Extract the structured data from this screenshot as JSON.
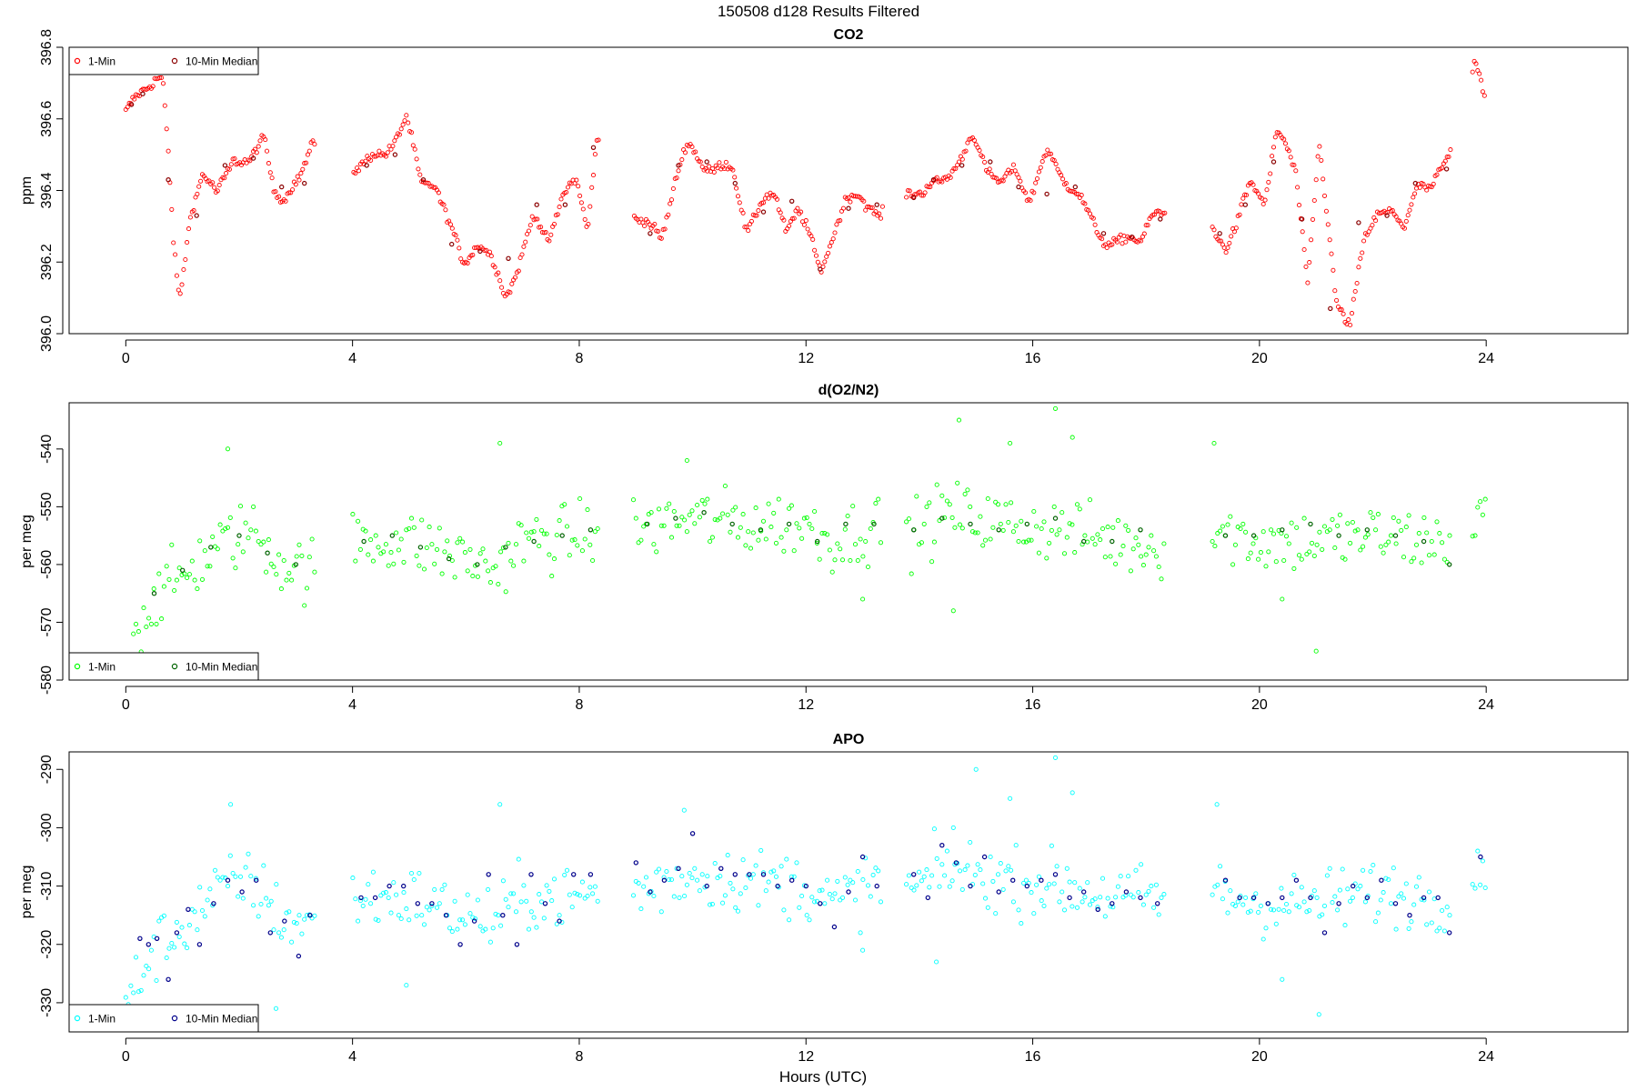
{
  "figure": {
    "title": "150508   d128   Results Filtered",
    "xlabel": "Hours (UTC)"
  },
  "chart_data": [
    {
      "type": "scatter",
      "title": "CO2",
      "xlabel": "",
      "ylabel": "ppm",
      "xlim": [
        -1,
        26.5
      ],
      "ylim": [
        396.0,
        396.8
      ],
      "xticks": [
        0,
        4,
        8,
        12,
        16,
        20,
        24
      ],
      "yticks": [
        396.0,
        396.2,
        396.4,
        396.6,
        396.8
      ],
      "ytick_labels": [
        "396.0",
        "396.2",
        "396.4",
        "396.6",
        "396.8"
      ],
      "legend_position": "top-left",
      "legend": [
        {
          "label": "1-Min",
          "color": "#ff0000"
        },
        {
          "label": "10-Min Median",
          "color": "#8b0000"
        }
      ],
      "series": [
        {
          "name": "1-Min",
          "color": "#ff0000",
          "kind": "points",
          "x": [],
          "y": []
        },
        {
          "name": "10-Min Median",
          "color": "#8b0000",
          "kind": "points",
          "x": [
            0.1,
            0.3,
            0.5,
            0.75,
            1.25,
            1.75,
            2.25,
            2.75,
            3.15,
            4.25,
            4.75,
            5.25,
            5.75,
            6.25,
            6.75,
            7.25,
            7.75,
            8.25,
            9.25,
            9.75,
            10.25,
            10.75,
            11.25,
            11.75,
            12.25,
            12.75,
            13.25,
            13.9,
            14.25,
            14.75,
            15.25,
            15.75,
            16.25,
            16.75,
            17.25,
            17.75,
            18.25,
            19.3,
            19.75,
            20.25,
            20.75,
            21.25,
            21.75,
            22.25,
            22.75,
            23.3
          ],
          "y": [
            396.64,
            396.67,
            396.73,
            396.43,
            396.33,
            396.47,
            396.49,
            396.41,
            396.42,
            396.47,
            396.5,
            396.43,
            396.25,
            396.23,
            396.21,
            396.36,
            396.36,
            396.52,
            396.28,
            396.47,
            396.48,
            396.42,
            396.34,
            396.37,
            396.18,
            396.35,
            396.36,
            396.38,
            396.43,
            396.47,
            396.48,
            396.41,
            396.39,
            396.41,
            396.28,
            396.27,
            396.32,
            396.28,
            396.36,
            396.48,
            396.32,
            396.07,
            396.31,
            396.33,
            396.42,
            396.46
          ]
        }
      ],
      "anchors": {
        "x": [
          0.0,
          0.25,
          0.55,
          0.65,
          0.75,
          0.85,
          0.95,
          1.15,
          1.35,
          1.6,
          1.9,
          2.2,
          2.45,
          2.6,
          2.8,
          3.05,
          3.3,
          4.05,
          4.3,
          4.55,
          4.75,
          4.95,
          5.2,
          5.45,
          5.7,
          5.95,
          6.2,
          6.45,
          6.7,
          6.95,
          7.2,
          7.45,
          7.7,
          7.95,
          8.15,
          8.3,
          9.0,
          9.25,
          9.45,
          9.7,
          9.9,
          10.2,
          10.45,
          10.7,
          10.95,
          11.2,
          11.45,
          11.65,
          11.85,
          12.05,
          12.25,
          12.45,
          12.7,
          12.95,
          13.2,
          13.3,
          13.8,
          14.05,
          14.4,
          14.75,
          14.95,
          15.2,
          15.45,
          15.7,
          15.95,
          16.25,
          16.5,
          16.75,
          17.0,
          17.3,
          17.6,
          17.9,
          18.1,
          18.3,
          19.2,
          19.4,
          19.6,
          19.85,
          20.1,
          20.3,
          20.45,
          20.65,
          20.85,
          21.05,
          21.35,
          21.6,
          21.85,
          22.1,
          22.3,
          22.55,
          22.8,
          23.05,
          23.3,
          23.8,
          23.9,
          24.0
        ],
        "y": [
          396.62,
          396.66,
          396.73,
          396.72,
          396.5,
          396.22,
          396.08,
          396.35,
          396.45,
          396.38,
          396.5,
          396.47,
          396.55,
          396.42,
          396.37,
          396.42,
          396.55,
          396.47,
          396.48,
          396.5,
          396.55,
          396.6,
          396.42,
          396.43,
          396.3,
          396.2,
          396.26,
          396.2,
          396.11,
          396.2,
          396.32,
          396.27,
          396.38,
          396.42,
          396.3,
          396.55,
          396.33,
          396.29,
          396.27,
          396.44,
          396.52,
          396.47,
          396.47,
          396.45,
          396.3,
          396.36,
          396.38,
          396.3,
          396.35,
          396.27,
          396.18,
          396.27,
          396.36,
          396.39,
          396.35,
          396.32,
          396.41,
          396.38,
          396.44,
          396.48,
          396.55,
          396.47,
          396.41,
          396.46,
          396.38,
          396.5,
          396.45,
          396.4,
          396.32,
          396.26,
          396.25,
          396.27,
          396.34,
          396.32,
          396.29,
          396.25,
          396.3,
          396.42,
          396.38,
          396.56,
          396.52,
          396.45,
          396.15,
          396.52,
          396.1,
          396.03,
          396.25,
          396.35,
          396.35,
          396.28,
          396.43,
          396.41,
          396.47,
          396.75,
          396.7,
          396.62
        ]
      }
    },
    {
      "type": "scatter",
      "title": "d(O2/N2)",
      "xlabel": "",
      "ylabel": "per meg",
      "xlim": [
        -1,
        26.5
      ],
      "ylim": [
        -580,
        -532
      ],
      "xticks": [
        0,
        4,
        8,
        12,
        16,
        20,
        24
      ],
      "yticks": [
        -580,
        -570,
        -560,
        -550,
        -540
      ],
      "ytick_labels": [
        "-580",
        "-570",
        "-560",
        "-550",
        "-540"
      ],
      "legend_position": "bottom-left",
      "legend": [
        {
          "label": "1-Min",
          "color": "#00ff00"
        },
        {
          "label": "10-Min Median",
          "color": "#006400"
        }
      ],
      "series": [
        {
          "name": "1-Min",
          "color": "#00ff00",
          "kind": "points",
          "x": [],
          "y": []
        },
        {
          "name": "10-Min Median",
          "color": "#006400",
          "kind": "points",
          "x": [
            0.1,
            0.5,
            1.0,
            1.5,
            2.0,
            2.5,
            3.0,
            4.2,
            4.7,
            5.2,
            5.7,
            6.2,
            6.7,
            7.2,
            7.7,
            8.2,
            9.2,
            9.7,
            10.2,
            10.7,
            11.2,
            11.7,
            12.2,
            12.7,
            13.2,
            13.9,
            14.4,
            14.9,
            15.4,
            15.9,
            16.4,
            16.9,
            17.4,
            17.9,
            19.4,
            19.9,
            20.4,
            20.9,
            21.4,
            21.9,
            22.4,
            22.9,
            23.35
          ],
          "y": [
            -576,
            -565,
            -561,
            -557,
            -555,
            -558,
            -560,
            -556,
            -555,
            -557,
            -559,
            -560,
            -557,
            -556,
            -555,
            -554,
            -553,
            -552,
            -551,
            -553,
            -554,
            -553,
            -556,
            -553,
            -553,
            -554,
            -552,
            -553,
            -554,
            -553,
            -552,
            -556,
            -556,
            -554,
            -555,
            -555,
            -554,
            -553,
            -555,
            -554,
            -555,
            -556,
            -560
          ]
        }
      ],
      "anchors": {
        "x": [
          0.0,
          0.5,
          1.0,
          1.6,
          2.2,
          2.8,
          3.3,
          4.0,
          5.0,
          6.0,
          6.5,
          7.0,
          8.0,
          8.3,
          9.0,
          10.0,
          11.0,
          12.0,
          12.5,
          13.3,
          13.8,
          14.5,
          15.5,
          16.5,
          17.5,
          18.3,
          19.2,
          20.0,
          21.0,
          22.0,
          23.0,
          23.5,
          24.0
        ],
        "y": [
          -574,
          -566,
          -562,
          -557,
          -554,
          -560,
          -561,
          -556,
          -556,
          -559,
          -561,
          -556,
          -555,
          -554,
          -554,
          -552,
          -553,
          -553,
          -556,
          -553,
          -555,
          -551,
          -553,
          -554,
          -556,
          -557,
          -554,
          -556,
          -556,
          -555,
          -556,
          -556,
          -551
        ]
      },
      "spread": 5.5,
      "outliers": {
        "x": [
          0.1,
          16.4,
          16.7,
          15.6,
          14.7,
          9.9,
          6.6,
          1.8,
          21.0,
          20.4,
          13.0,
          14.6,
          19.2
        ],
        "y": [
          -577,
          -533,
          -538,
          -539,
          -535,
          -542,
          -539,
          -540,
          -575,
          -566,
          -566,
          -568,
          -539
        ]
      }
    },
    {
      "type": "scatter",
      "title": "APO",
      "xlabel": "Hours (UTC)",
      "ylabel": "per meg",
      "xlim": [
        -1,
        26.5
      ],
      "ylim": [
        -335,
        -287
      ],
      "xticks": [
        0,
        4,
        8,
        12,
        16,
        20,
        24
      ],
      "yticks": [
        -330,
        -320,
        -310,
        -300,
        -290
      ],
      "ytick_labels": [
        "-330",
        "-320",
        "-310",
        "-300",
        "-290"
      ],
      "legend_position": "bottom-left",
      "legend": [
        {
          "label": "1-Min",
          "color": "#00ffff"
        },
        {
          "label": "10-Min Median",
          "color": "#00008b"
        }
      ],
      "series": [
        {
          "name": "1-Min",
          "color": "#00ffff",
          "kind": "points",
          "x": [],
          "y": []
        },
        {
          "name": "10-Min Median",
          "color": "#00008b",
          "kind": "points",
          "x": [
            0.1,
            0.25,
            0.4,
            0.55,
            0.75,
            0.9,
            1.1,
            1.3,
            1.55,
            1.8,
            2.05,
            2.3,
            2.55,
            2.8,
            3.05,
            3.25,
            4.15,
            4.4,
            4.65,
            4.9,
            5.15,
            5.4,
            5.65,
            5.9,
            6.15,
            6.4,
            6.65,
            6.9,
            7.15,
            7.4,
            7.65,
            7.9,
            8.2,
            9.0,
            9.25,
            9.5,
            9.75,
            10.0,
            10.25,
            10.5,
            10.75,
            11.0,
            11.25,
            11.5,
            11.75,
            12.0,
            12.25,
            12.5,
            12.75,
            13.0,
            13.25,
            13.9,
            14.15,
            14.4,
            14.65,
            14.9,
            15.15,
            15.4,
            15.65,
            15.9,
            16.15,
            16.4,
            16.65,
            16.9,
            17.15,
            17.4,
            17.65,
            17.9,
            18.2,
            19.4,
            19.65,
            19.9,
            20.15,
            20.4,
            20.65,
            20.9,
            21.15,
            21.4,
            21.65,
            21.9,
            22.15,
            22.4,
            22.65,
            22.9,
            23.15,
            23.35,
            23.9
          ],
          "y": [
            -333,
            -319,
            -320,
            -319,
            -326,
            -318,
            -314,
            -320,
            -313,
            -309,
            -311,
            -309,
            -318,
            -316,
            -322,
            -315,
            -312,
            -312,
            -310,
            -310,
            -313,
            -313,
            -315,
            -320,
            -316,
            -308,
            -315,
            -320,
            -308,
            -313,
            -316,
            -308,
            -308,
            -306,
            -311,
            -309,
            -307,
            -301,
            -310,
            -307,
            -308,
            -308,
            -308,
            -310,
            -309,
            -310,
            -313,
            -317,
            -311,
            -305,
            -310,
            -308,
            -312,
            -303,
            -306,
            -310,
            -305,
            -311,
            -309,
            -310,
            -309,
            -308,
            -312,
            -311,
            -314,
            -313,
            -311,
            -312,
            -313,
            -309,
            -312,
            -312,
            -313,
            -312,
            -309,
            -312,
            -318,
            -313,
            -310,
            -312,
            -309,
            -313,
            -315,
            -312,
            -312,
            -318,
            -305
          ]
        }
      ],
      "anchors": {
        "x": [
          0.0,
          0.5,
          1.0,
          1.6,
          2.2,
          2.8,
          3.3,
          4.0,
          5.0,
          6.0,
          6.5,
          7.0,
          8.0,
          8.3,
          9.0,
          10.0,
          11.0,
          12.0,
          12.5,
          13.3,
          13.8,
          14.5,
          15.5,
          16.5,
          17.5,
          18.3,
          19.2,
          20.0,
          21.0,
          22.0,
          23.0,
          23.5,
          24.0
        ],
        "y": [
          -330,
          -321,
          -317,
          -311,
          -309,
          -316,
          -316,
          -312,
          -312,
          -315,
          -316,
          -312,
          -312,
          -311,
          -311,
          -308,
          -309,
          -310,
          -313,
          -309,
          -311,
          -307,
          -309,
          -310,
          -312,
          -312,
          -311,
          -313,
          -313,
          -311,
          -312,
          -312,
          -305
        ]
      },
      "spread": 5.5,
      "outliers": {
        "x": [
          16.4,
          16.7,
          15.6,
          15.0,
          14.6,
          14.3,
          9.85,
          6.6,
          1.85,
          21.05,
          20.4,
          13.0,
          19.25,
          2.65,
          0.15,
          4.95
        ],
        "y": [
          -288,
          -294,
          -295,
          -290,
          -300,
          -323,
          -297,
          -296,
          -296,
          -332,
          -326,
          -321,
          -296,
          -331,
          -331,
          -327
        ]
      }
    }
  ]
}
